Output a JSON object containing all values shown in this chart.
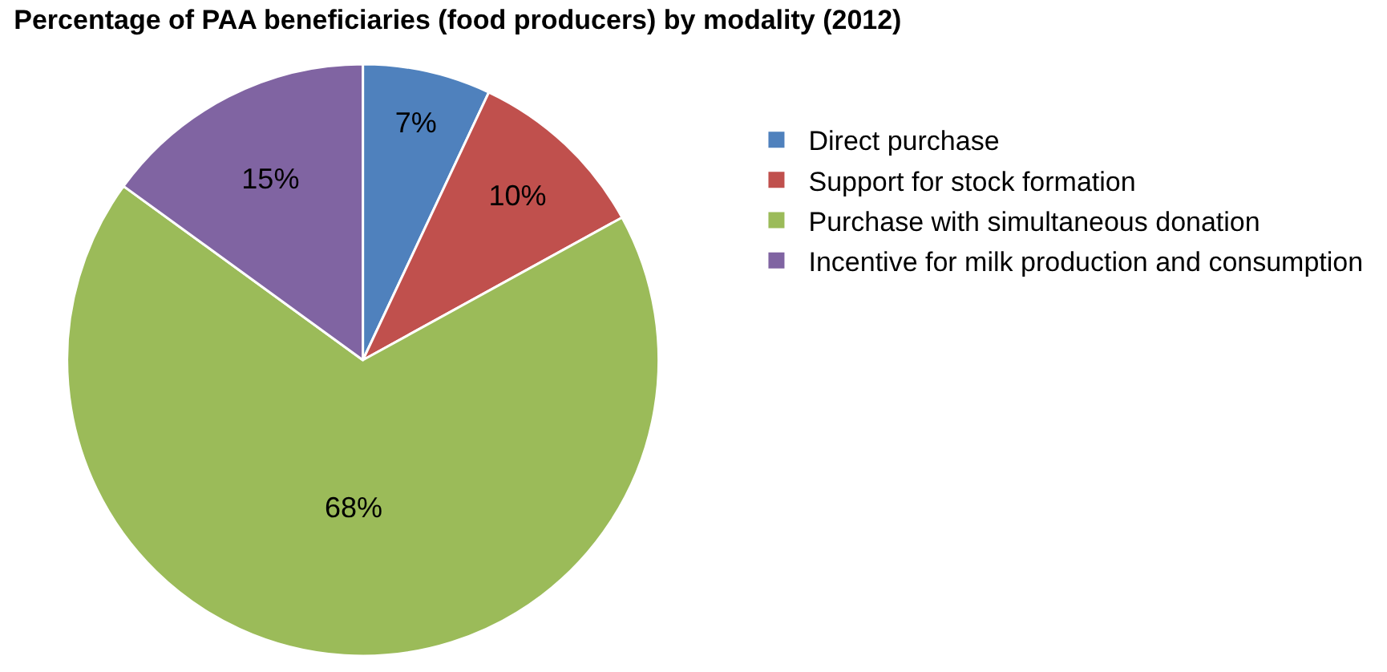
{
  "chart_data": {
    "type": "pie",
    "title": "Percentage of PAA beneficiaries (food producers) by modality (2012)",
    "categories": [
      "Direct purchase",
      "Support for stock formation",
      "Purchase with simultaneous donation",
      "Incentive for milk production and consumption"
    ],
    "values": [
      7,
      10,
      68,
      15
    ],
    "colors": [
      "#4f81bd",
      "#c0504d",
      "#9bbb59",
      "#8064a2"
    ],
    "value_labels": [
      "7%",
      "10%",
      "68%",
      "15%"
    ],
    "legend": "right"
  }
}
